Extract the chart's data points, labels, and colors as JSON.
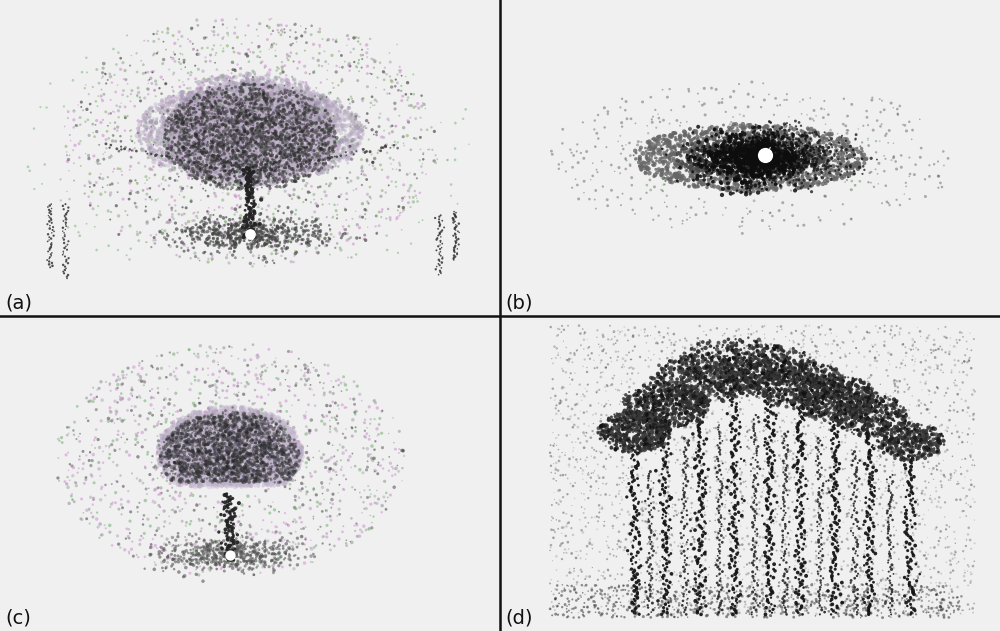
{
  "figure_size": [
    10.0,
    6.31
  ],
  "dpi": 100,
  "bg_color": "#f0f0f0",
  "panel_bg": "#ffffff",
  "divider_color": "#111111",
  "divider_lw": 1.8,
  "label_fontsize": 14,
  "label_color": "#111111",
  "labels": [
    "(a)",
    "(b)",
    "(c)",
    "(d)"
  ],
  "panel_border_color": "#cccccc",
  "canopy_gray": "#b8aac0",
  "dark_point": "#222222",
  "mid_point": "#666666",
  "light_point": "#aaaaaa",
  "pink_point": "#cc88cc",
  "green_point": "#88aa88",
  "seed_a": 100,
  "seed_b": 200,
  "seed_c": 300,
  "seed_d": 400
}
